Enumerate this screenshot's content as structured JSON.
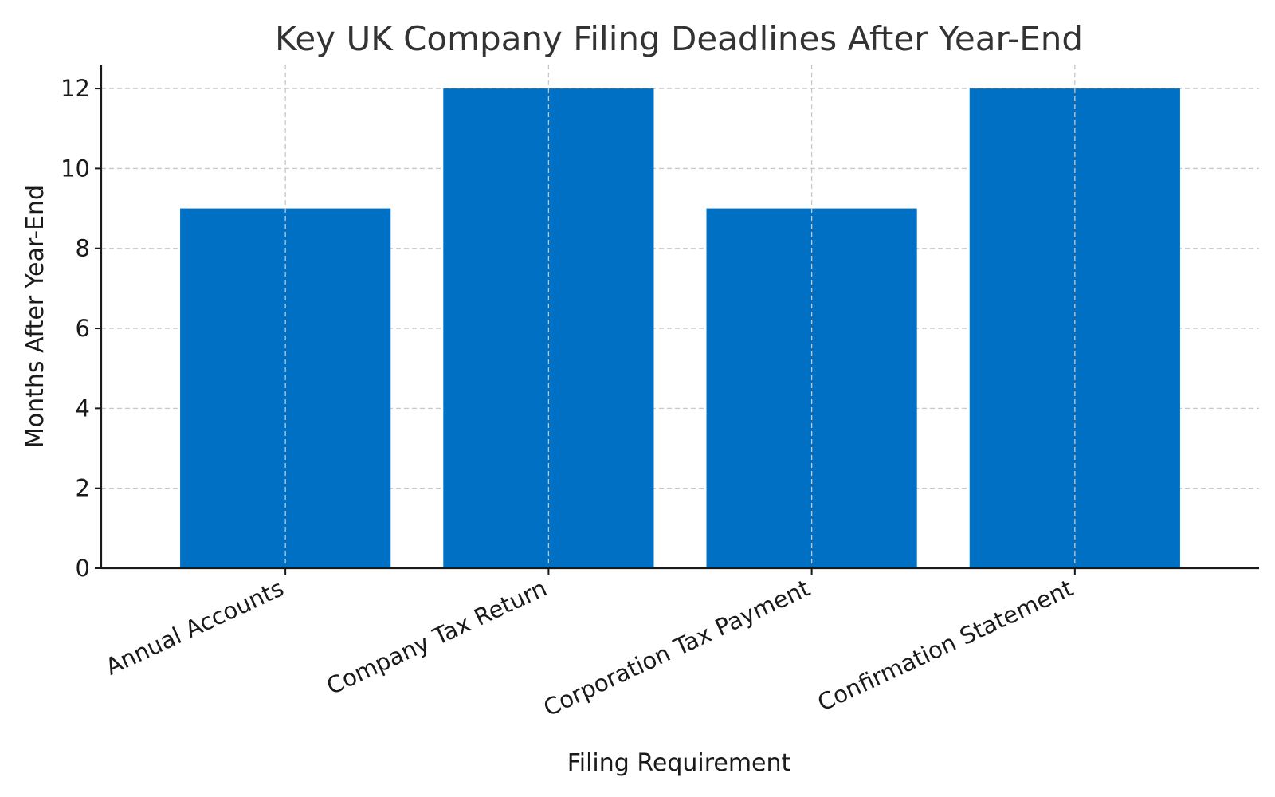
{
  "chart_data": {
    "type": "bar",
    "title": "Key UK Company Filing Deadlines After Year-End",
    "xlabel": "Filing Requirement",
    "ylabel": "Months After Year-End",
    "categories": [
      "Annual Accounts",
      "Company Tax Return",
      "Corporation Tax Payment",
      "Confirmation Statement"
    ],
    "values": [
      9,
      12,
      9,
      12
    ],
    "ylim": [
      0,
      12.6
    ],
    "yticks": [
      0,
      2,
      4,
      6,
      8,
      10,
      12
    ],
    "grid": true,
    "bar_color": "#0070C4"
  }
}
